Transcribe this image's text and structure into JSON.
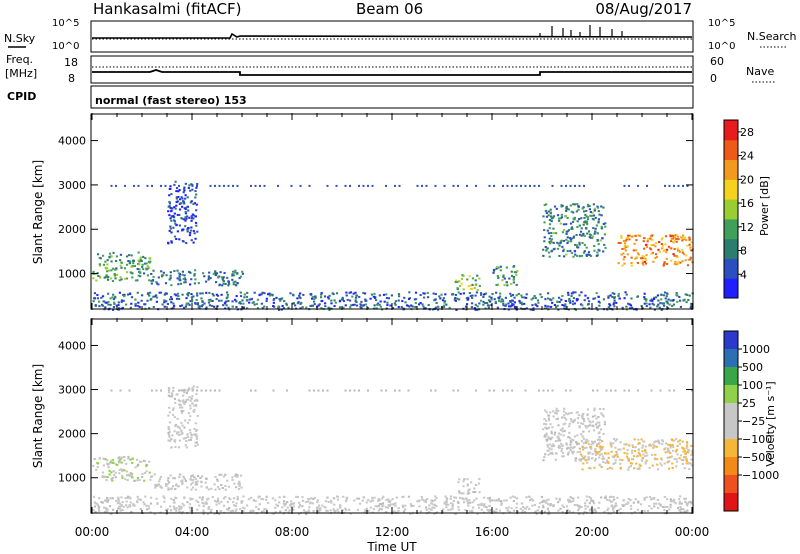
{
  "header": {
    "station": "Hankasalmi (fitACF)",
    "beam": "Beam 06",
    "date": "08/Aug/2017"
  },
  "noise_panel": {
    "left_label": "N.Sky",
    "right_label": "N.Search",
    "left_ticks": [
      "10^5",
      "10^0"
    ],
    "right_ticks": [
      "10^5",
      "10^0"
    ]
  },
  "freq_panel": {
    "left_label_line1": "Freq.",
    "left_label_line2": "[MHz]",
    "left_ticks": [
      "18",
      "8"
    ],
    "right_label": "Nave",
    "right_ticks": [
      "60",
      "0"
    ]
  },
  "cpid_panel": {
    "label": "CPID",
    "text": "normal (fast stereo) 153"
  },
  "colors": {
    "power_scale": [
      "#1f1fff",
      "#2b4fbf",
      "#2d7d6e",
      "#3fa05a",
      "#9acd32",
      "#f5d21b",
      "#f29a1f",
      "#ee5a18",
      "#e81c1c"
    ],
    "velocity_scale": [
      "#e01616",
      "#ef5020",
      "#f28a1a",
      "#f4b73a",
      "#c7c7c7",
      "#c7c7c7",
      "#8fd148",
      "#3aa64a",
      "#2d6fb3",
      "#2a3bcc"
    ],
    "ground_scatter": "#b9b9b9"
  },
  "chart_data": [
    {
      "type": "heatmap",
      "title": "",
      "xlabel": "Time UT",
      "ylabel": "Slant Range [km]",
      "x_ticks": [
        "00:00",
        "04:00",
        "08:00",
        "12:00",
        "16:00",
        "20:00",
        "00:00"
      ],
      "xlim": [
        0,
        24
      ],
      "y_ticks": [
        "1000",
        "2000",
        "3000",
        "4000"
      ],
      "ylim": [
        200,
        4600
      ],
      "colorbar_label": "Power [dB]",
      "colorbar_ticks": [
        "4",
        "8",
        "12",
        "16",
        "20",
        "24",
        "28"
      ],
      "clim": [
        0,
        30
      ],
      "regions": [
        {
          "x": [
            0.0,
            2.3
          ],
          "y": [
            850,
            1500
          ],
          "level": 11
        },
        {
          "x": [
            2.3,
            6.0
          ],
          "y": [
            750,
            1100
          ],
          "level": 7
        },
        {
          "x": [
            3.0,
            4.2
          ],
          "y": [
            1700,
            3100
          ],
          "level": 4
        },
        {
          "x": [
            14.5,
            15.5
          ],
          "y": [
            650,
            1000
          ],
          "level": 14
        },
        {
          "x": [
            16.0,
            17.0
          ],
          "y": [
            750,
            1200
          ],
          "level": 10
        },
        {
          "x": [
            18.0,
            20.5
          ],
          "y": [
            1400,
            2600
          ],
          "level": 9
        },
        {
          "x": [
            21.0,
            24.0
          ],
          "y": [
            1200,
            1900
          ],
          "level": 22
        },
        {
          "x": [
            0.0,
            24.0
          ],
          "y": [
            200,
            600
          ],
          "level": 6
        }
      ]
    },
    {
      "type": "heatmap",
      "title": "",
      "xlabel": "Time UT",
      "ylabel": "Slant Range [km]",
      "x_ticks": [
        "00:00",
        "04:00",
        "08:00",
        "12:00",
        "16:00",
        "20:00",
        "00:00"
      ],
      "xlim": [
        0,
        24
      ],
      "y_ticks": [
        "1000",
        "2000",
        "3000",
        "4000"
      ],
      "ylim": [
        200,
        4600
      ],
      "colorbar_label": "Velocity [m s⁻¹]",
      "colorbar_ticks": [
        "1000",
        "500",
        "100",
        "25",
        "−25",
        "−100",
        "−500",
        "−1000"
      ],
      "clim": [
        -1000,
        1000
      ],
      "regions": [
        {
          "x": [
            0.0,
            2.3
          ],
          "y": [
            950,
            1500
          ],
          "velocity": 150
        },
        {
          "x": [
            2.3,
            6.0
          ],
          "y": [
            750,
            1100
          ],
          "velocity": 0
        },
        {
          "x": [
            3.0,
            4.2
          ],
          "y": [
            1700,
            3100
          ],
          "velocity": 0
        },
        {
          "x": [
            14.5,
            15.5
          ],
          "y": [
            650,
            1000
          ],
          "velocity": 0
        },
        {
          "x": [
            18.0,
            20.5
          ],
          "y": [
            1400,
            2600
          ],
          "velocity": 0
        },
        {
          "x": [
            19.5,
            24.0
          ],
          "y": [
            1200,
            1900
          ],
          "velocity": -200
        },
        {
          "x": [
            0.0,
            24.0
          ],
          "y": [
            200,
            600
          ],
          "velocity": -40
        }
      ]
    }
  ]
}
